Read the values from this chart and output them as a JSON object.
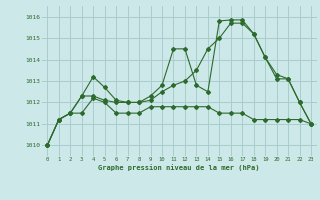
{
  "title": "Graphe pression niveau de la mer (hPa)",
  "background_color": "#cce8e8",
  "grid_color": "#aacccc",
  "line_color": "#2d6a2d",
  "xlim": [
    -0.5,
    23.5
  ],
  "ylim": [
    1009.5,
    1016.5
  ],
  "yticks": [
    1010,
    1011,
    1012,
    1013,
    1014,
    1015,
    1016
  ],
  "xticks": [
    0,
    1,
    2,
    3,
    4,
    5,
    6,
    7,
    8,
    9,
    10,
    11,
    12,
    13,
    14,
    15,
    16,
    17,
    18,
    19,
    20,
    21,
    22,
    23
  ],
  "series": [
    [
      1010.0,
      1011.2,
      1011.5,
      1012.3,
      1013.2,
      1012.7,
      1012.1,
      1012.0,
      1012.0,
      1012.3,
      1012.8,
      1014.5,
      1014.5,
      1012.8,
      1012.5,
      1015.8,
      1015.85,
      1015.85,
      1015.2,
      1014.1,
      1013.1,
      1013.1,
      1012.0,
      1011.0
    ],
    [
      1010.0,
      1011.2,
      1011.5,
      1012.3,
      1012.3,
      1012.1,
      1012.0,
      1012.0,
      1012.0,
      1012.1,
      1012.5,
      1012.8,
      1013.0,
      1013.5,
      1014.5,
      1015.0,
      1015.7,
      1015.7,
      1015.2,
      1014.1,
      1013.3,
      1013.1,
      1012.0,
      1011.0
    ],
    [
      1010.0,
      1011.2,
      1011.5,
      1011.5,
      1012.2,
      1012.0,
      1011.5,
      1011.5,
      1011.5,
      1011.8,
      1011.8,
      1011.8,
      1011.8,
      1011.8,
      1011.8,
      1011.5,
      1011.5,
      1011.5,
      1011.2,
      1011.2,
      1011.2,
      1011.2,
      1011.2,
      1011.0
    ]
  ]
}
